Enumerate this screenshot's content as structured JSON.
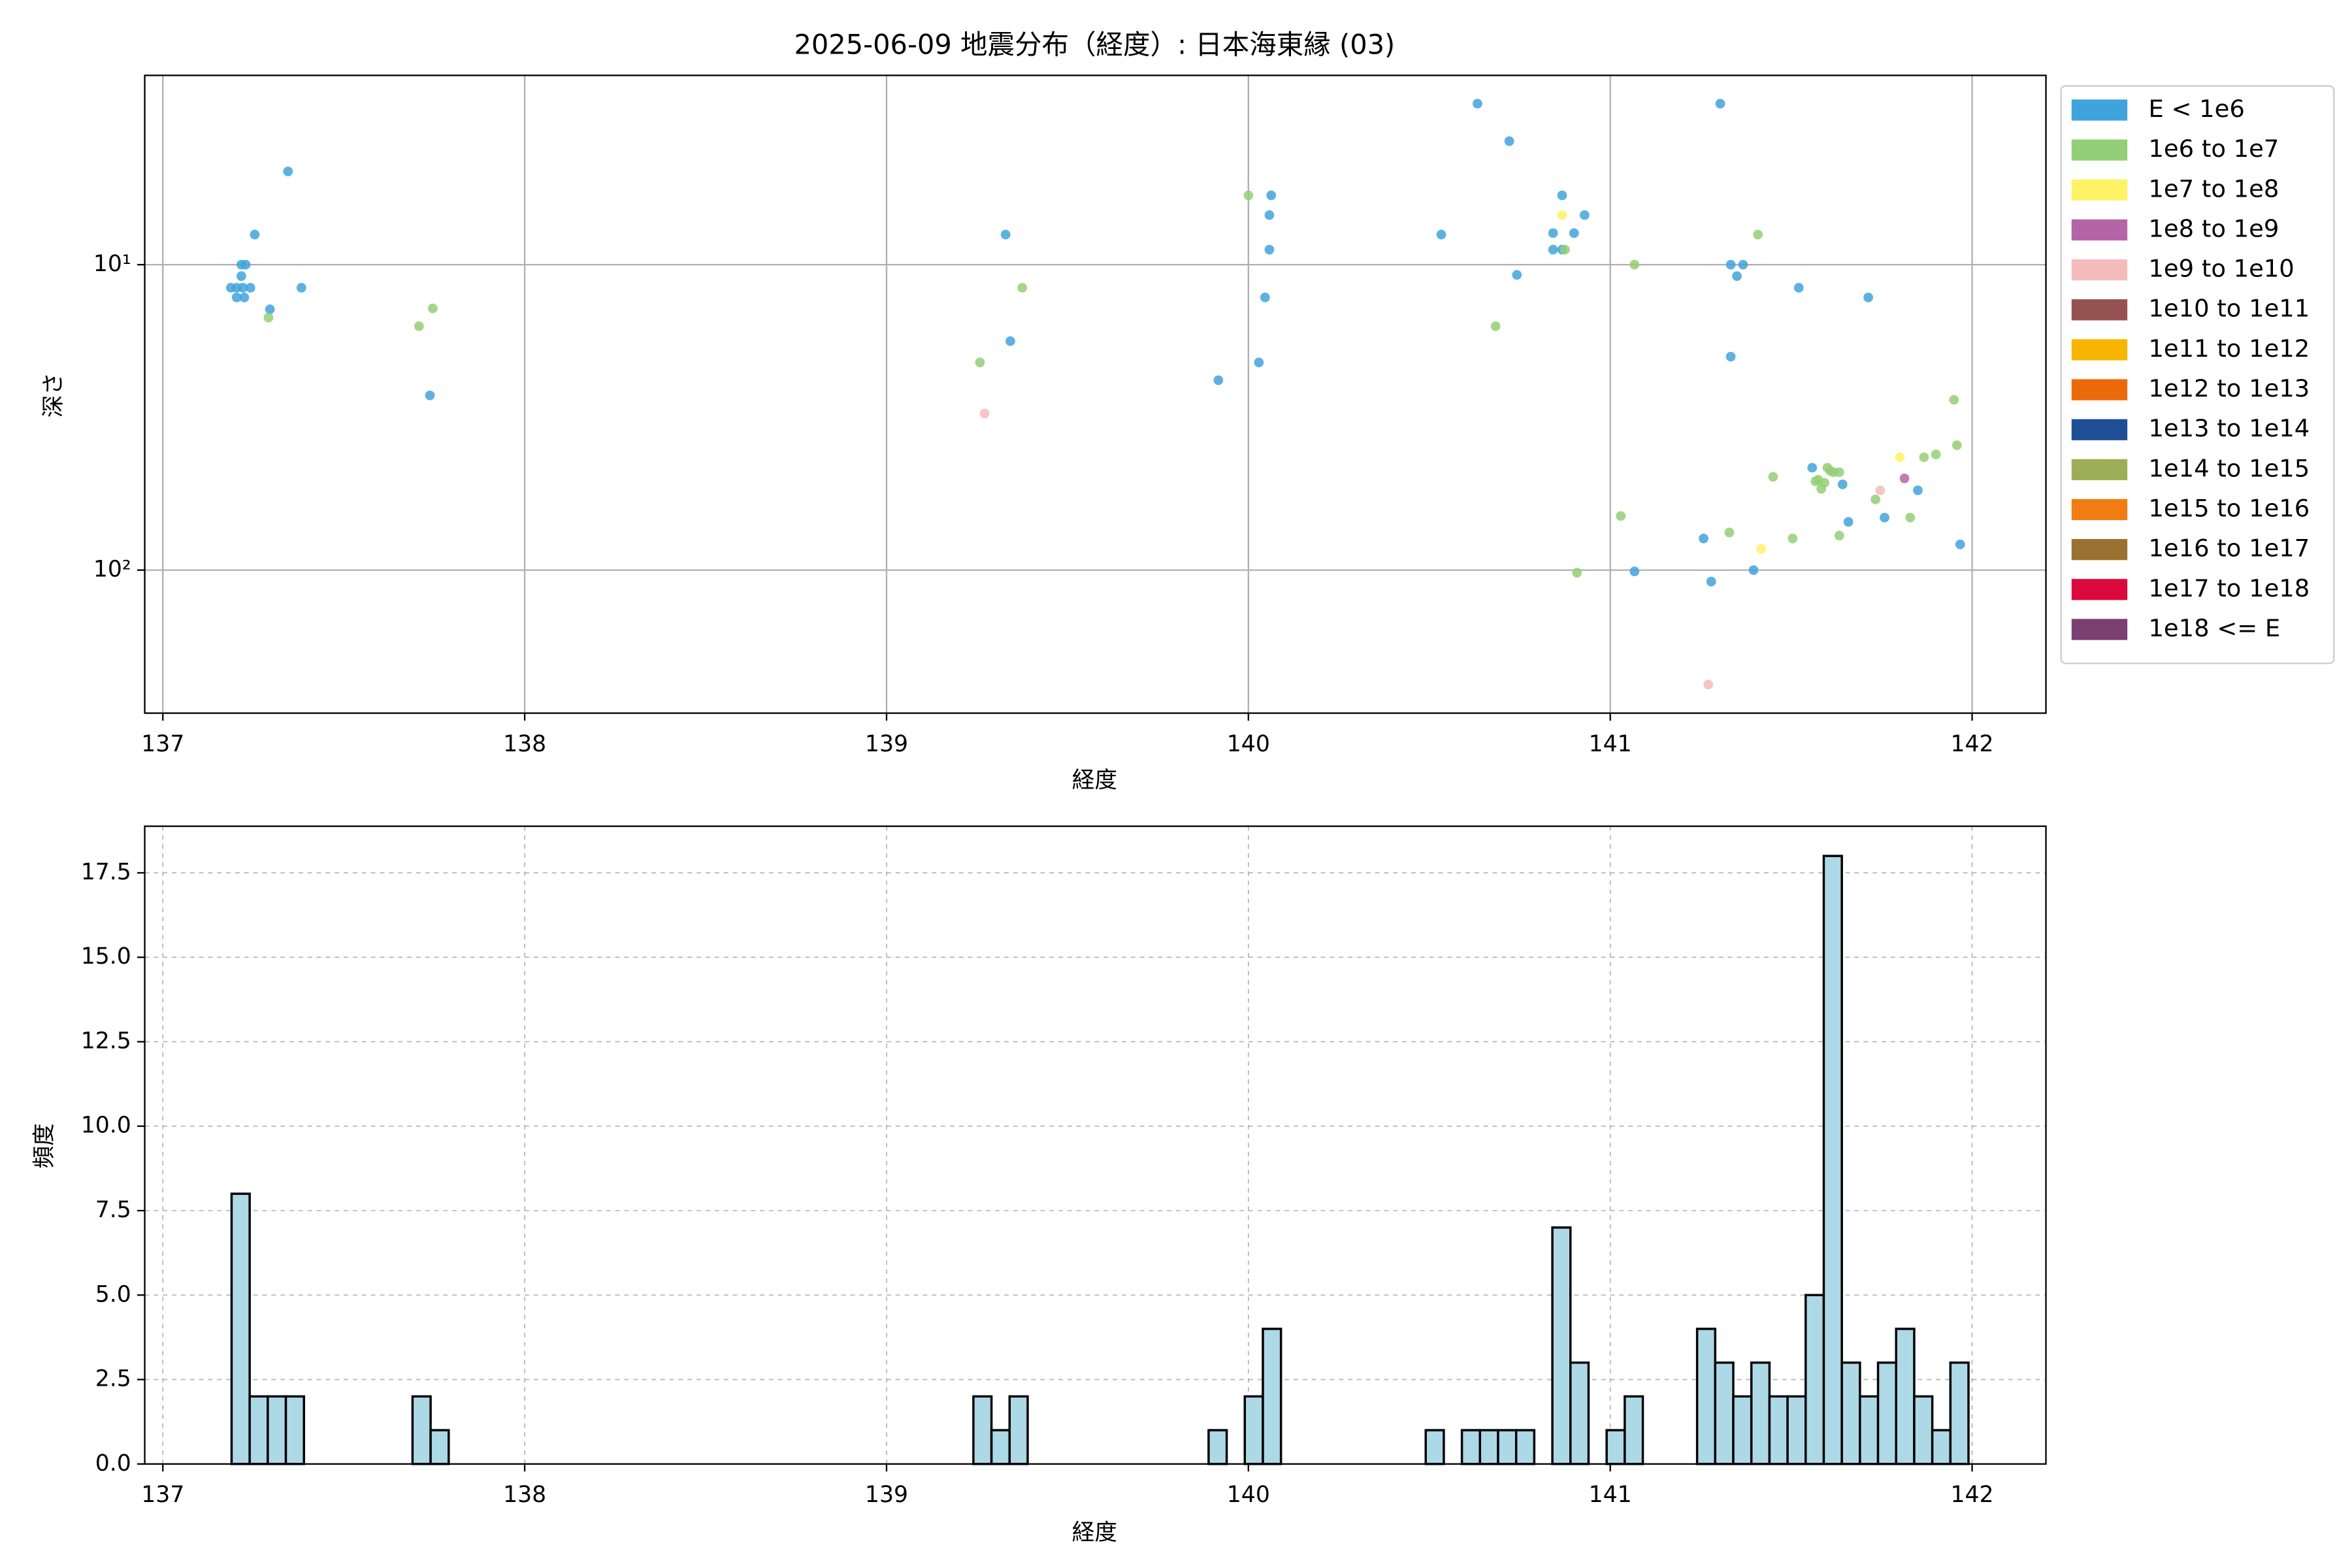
{
  "chart_data": [
    {
      "type": "scatter",
      "title": "2025-06-09 地震分布（経度）: 日本海東縁 (03)",
      "x_label": "経度",
      "y_label": "深さ",
      "xlim": [
        136.95,
        142.204
      ],
      "xticks": [
        137,
        138,
        139,
        140,
        141,
        142
      ],
      "ylim": [
        294,
        2.4
      ],
      "y_scale": "log",
      "yticks": [
        {
          "value": 10,
          "label": "10¹"
        },
        {
          "value": 100,
          "label": "10²"
        }
      ],
      "grid": true,
      "grid_linestyle": "solid",
      "legend": "outside-right",
      "series": [
        {
          "name": "E < 1e6",
          "color": "#41a3dc",
          "x": [
            137.188,
            137.204,
            137.221,
            137.242,
            137.204,
            137.225,
            137.217,
            137.217,
            137.229,
            137.254,
            137.296,
            137.383,
            137.346,
            137.738,
            139.329,
            139.342,
            139.917,
            140.029,
            140.046,
            140.058,
            140.058,
            140.063,
            140.533,
            140.633,
            140.721,
            140.742,
            140.842,
            140.842,
            140.867,
            140.867,
            140.9,
            140.929,
            141.304,
            141.333,
            141.35,
            141.367,
            141.333,
            141.521,
            141.713,
            141.067,
            141.258,
            141.279,
            141.396,
            141.558,
            141.642,
            141.658,
            141.758,
            141.85,
            141.967
          ],
          "y": [
            11.9,
            11.9,
            11.9,
            11.9,
            12.8,
            12.8,
            10.9,
            10,
            10,
            7.97,
            14.0,
            11.9,
            4.95,
            26.8,
            7.97,
            17.8,
            23.9,
            20.9,
            12.8,
            8.93,
            6.88,
            5.93,
            7.97,
            2.97,
            3.94,
            10.8,
            7.88,
            8.93,
            5.93,
            8.93,
            7.88,
            6.88,
            2.97,
            10,
            10.9,
            10,
            20.0,
            11.9,
            12.8,
            101,
            78.8,
            109,
            100,
            46.2,
            52.4,
            69.5,
            67.3,
            54.8,
            82.4
          ]
        },
        {
          "name": "1e6 to 1e7",
          "color": "#93cf76",
          "x": [
            137.292,
            137.708,
            137.746,
            139.258,
            139.375,
            140.0,
            140.683,
            140.875,
            141.067,
            141.408,
            140.908,
            141.029,
            141.329,
            141.45,
            141.504,
            141.567,
            141.583,
            141.6,
            141.617,
            141.633,
            141.633,
            141.733,
            141.829,
            141.867,
            141.9,
            141.958,
            141.95,
            141.575,
            141.592,
            141.608
          ],
          "y": [
            14.9,
            15.9,
            13.9,
            20.9,
            11.9,
            5.93,
            15.9,
            8.93,
            10,
            7.97,
            102,
            66.5,
            75.3,
            49.5,
            78.8,
            51.2,
            54.2,
            46.2,
            47.8,
            47.8,
            77.1,
            58.7,
            67.3,
            42.7,
            41.8,
            39.0,
            27.7,
            50.6,
            51.8,
            47.3
          ]
        },
        {
          "name": "1e7 to 1e8",
          "color": "#fff264",
          "x": [
            140.867,
            141.417,
            141.8
          ],
          "y": [
            6.88,
            85.3,
            42.7
          ]
        },
        {
          "name": "1e8 to 1e9",
          "color": "#b565a7",
          "x": [
            141.813
          ],
          "y": [
            50.1
          ]
        },
        {
          "name": "1e9 to 1e10",
          "color": "#f5bcbc",
          "x": [
            139.271,
            141.271,
            141.746
          ],
          "y": [
            30.7,
            237,
            54.8
          ]
        },
        {
          "name": "1e10 to 1e11",
          "color": "#955251",
          "x": [],
          "y": []
        },
        {
          "name": "1e11 to 1e12",
          "color": "#f7b500",
          "x": [],
          "y": []
        },
        {
          "name": "1e12 to 1e13",
          "color": "#ea6a0b",
          "x": [],
          "y": []
        },
        {
          "name": "1e13 to 1e14",
          "color": "#1f4e96",
          "x": [],
          "y": []
        },
        {
          "name": "1e14 to 1e15",
          "color": "#9caf57",
          "x": [],
          "y": []
        },
        {
          "name": "1e15 to 1e16",
          "color": "#f07c13",
          "x": [],
          "y": []
        },
        {
          "name": "1e16 to 1e17",
          "color": "#9a7130",
          "x": [],
          "y": []
        },
        {
          "name": "1e17 to 1e18",
          "color": "#dc0a3c",
          "x": [],
          "y": []
        },
        {
          "name": "1e18 <= E",
          "color": "#7b3f72",
          "x": [],
          "y": []
        }
      ]
    },
    {
      "type": "histogram",
      "x_label": "経度",
      "y_label": "頻度",
      "xlim": [
        136.95,
        142.204
      ],
      "xticks": [
        137,
        138,
        139,
        140,
        141,
        142
      ],
      "ylim": [
        0,
        18.88
      ],
      "yticks": [
        {
          "value": 0,
          "label": "0.0"
        },
        2.5,
        {
          "value": 5,
          "label": "5.0"
        },
        7.5,
        {
          "value": 10,
          "label": "10.0"
        },
        12.5,
        {
          "value": 15,
          "label": "15.0"
        },
        17.5
      ],
      "grid": true,
      "grid_linestyle": "dashed",
      "color": "#add8e6",
      "edgecolor": "#000000",
      "bins": [
        137.19,
        137.24,
        137.29,
        137.34,
        137.39,
        137.44,
        137.49,
        137.54,
        137.59,
        137.64,
        137.69,
        137.74,
        137.79,
        137.84,
        137.89,
        137.94,
        137.99,
        138.04,
        138.09,
        138.14,
        138.19,
        138.24,
        138.29,
        138.34,
        138.39,
        138.44,
        138.49,
        138.54,
        138.59,
        138.64,
        138.69,
        138.74,
        138.79,
        138.84,
        138.89,
        138.94,
        138.99,
        139.04,
        139.09,
        139.14,
        139.19,
        139.24,
        139.29,
        139.34,
        139.39,
        139.44,
        139.49,
        139.54,
        139.59,
        139.64,
        139.69,
        139.74,
        139.79,
        139.84,
        139.89,
        139.94,
        139.99,
        140.04,
        140.09,
        140.14,
        140.19,
        140.24,
        140.29,
        140.34,
        140.39,
        140.44,
        140.49,
        140.54,
        140.59,
        140.64,
        140.69,
        140.74,
        140.79,
        140.84,
        140.89,
        140.94,
        140.99,
        141.04,
        141.09,
        141.14,
        141.19,
        141.24,
        141.29,
        141.34,
        141.39,
        141.44,
        141.49,
        141.54,
        141.59,
        141.64,
        141.69,
        141.74,
        141.79,
        141.84,
        141.89,
        141.94,
        141.99
      ],
      "counts": [
        8,
        2,
        2,
        2,
        0,
        0,
        0,
        0,
        0,
        0,
        2,
        1,
        0,
        0,
        0,
        0,
        0,
        0,
        0,
        0,
        0,
        0,
        0,
        0,
        0,
        0,
        0,
        0,
        0,
        0,
        0,
        0,
        0,
        0,
        0,
        0,
        0,
        0,
        0,
        0,
        0,
        2,
        1,
        2,
        0,
        0,
        0,
        0,
        0,
        0,
        0,
        0,
        0,
        0,
        1,
        0,
        2,
        4,
        0,
        0,
        0,
        0,
        0,
        0,
        0,
        0,
        1,
        0,
        1,
        1,
        1,
        1,
        0,
        7,
        3,
        0,
        1,
        2,
        0,
        0,
        0,
        4,
        3,
        2,
        3,
        2,
        2,
        5,
        18,
        3,
        2,
        3,
        4,
        2,
        1,
        3
      ]
    }
  ]
}
